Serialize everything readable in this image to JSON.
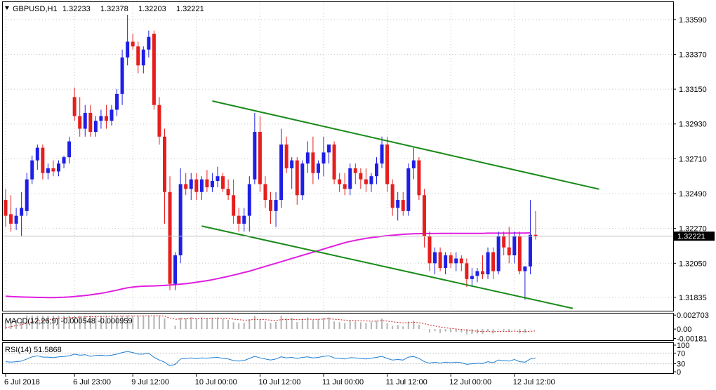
{
  "header": {
    "symbol": "GBPUSD,H1",
    "open": "1.32233",
    "high": "1.32378",
    "low": "1.32203",
    "close": "1.32221"
  },
  "colors": {
    "bull": "#1e1ee6",
    "bear": "#e61e1e",
    "ma": "#e01ee0",
    "trend": "#1a8a1a",
    "grid": "#c8c8c8",
    "rsi": "#1e7fd6",
    "macd_signal": "#c81e1e",
    "macd_hist": "#b4b4b4"
  },
  "chart_data": [
    {
      "type": "candlestick",
      "y_ticks": [
        "1.33590",
        "1.33370",
        "1.33150",
        "1.32930",
        "1.32710",
        "1.32490",
        "1.32270",
        "1.32050",
        "1.31835"
      ],
      "ylim": [
        1.3175,
        1.337
      ],
      "current_price_label": "1.32221",
      "current_price": 1.32221,
      "x_ticks": [
        {
          "label": "6 Jul 2018",
          "index": 0
        },
        {
          "label": "6 Jul 23:00",
          "index": 13
        },
        {
          "label": "9 Jul 12:00",
          "index": 24
        },
        {
          "label": "10 Jul 00:00",
          "index": 36
        },
        {
          "label": "10 Jul 12:00",
          "index": 48
        },
        {
          "label": "11 Jul 00:00",
          "index": 60
        },
        {
          "label": "11 Jul 12:00",
          "index": 72
        },
        {
          "label": "12 Jul 00:00",
          "index": 84
        },
        {
          "label": "12 Jul 12:00",
          "index": 96
        }
      ],
      "candles": [
        [
          1.3245,
          1.3252,
          1.3228,
          1.3235
        ],
        [
          1.3236,
          1.3248,
          1.3225,
          1.323
        ],
        [
          1.323,
          1.324,
          1.3226,
          1.3235
        ],
        [
          1.3235,
          1.325,
          1.3222,
          1.324
        ],
        [
          1.3238,
          1.3262,
          1.3235,
          1.3258
        ],
        [
          1.3258,
          1.3273,
          1.3255,
          1.327
        ],
        [
          1.327,
          1.328,
          1.3264,
          1.3278
        ],
        [
          1.3278,
          1.328,
          1.3258,
          1.3262
        ],
        [
          1.3262,
          1.3268,
          1.3258,
          1.3265
        ],
        [
          1.3265,
          1.327,
          1.326,
          1.3263
        ],
        [
          1.3263,
          1.327,
          1.326,
          1.3268
        ],
        [
          1.3268,
          1.3273,
          1.3265,
          1.3272
        ],
        [
          1.3272,
          1.3285,
          1.3268,
          1.3282
        ],
        [
          1.331,
          1.3316,
          1.3295,
          1.3298
        ],
        [
          1.3298,
          1.331,
          1.3285,
          1.329
        ],
        [
          1.329,
          1.3305,
          1.3285,
          1.33
        ],
        [
          1.33,
          1.3305,
          1.3285,
          1.3288
        ],
        [
          1.3288,
          1.3298,
          1.3285,
          1.3295
        ],
        [
          1.3295,
          1.3302,
          1.329,
          1.3298
        ],
        [
          1.3298,
          1.3305,
          1.329,
          1.3295
        ],
        [
          1.3295,
          1.3305,
          1.3292,
          1.3302
        ],
        [
          1.3302,
          1.3315,
          1.3298,
          1.3312
        ],
        [
          1.3312,
          1.334,
          1.3305,
          1.3335
        ],
        [
          1.3335,
          1.3362,
          1.333,
          1.3345
        ],
        [
          1.3345,
          1.335,
          1.334,
          1.3342
        ],
        [
          1.3342,
          1.3345,
          1.3325,
          1.333
        ],
        [
          1.333,
          1.3342,
          1.3325,
          1.334
        ],
        [
          1.334,
          1.3352,
          1.3335,
          1.3348
        ],
        [
          1.335,
          1.3352,
          1.3302,
          1.3305
        ],
        [
          1.3305,
          1.331,
          1.328,
          1.3285
        ],
        [
          1.3285,
          1.329,
          1.323,
          1.325
        ],
        [
          1.325,
          1.326,
          1.3188,
          1.3192
        ],
        [
          1.3192,
          1.3212,
          1.3188,
          1.321
        ],
        [
          1.321,
          1.3265,
          1.3205,
          1.3255
        ],
        [
          1.3255,
          1.3262,
          1.3248,
          1.3252
        ],
        [
          1.3252,
          1.3262,
          1.3245,
          1.3258
        ],
        [
          1.3258,
          1.3262,
          1.3245,
          1.325
        ],
        [
          1.325,
          1.326,
          1.3245,
          1.3258
        ],
        [
          1.3258,
          1.3264,
          1.325,
          1.3253
        ],
        [
          1.3253,
          1.3262,
          1.325,
          1.3257
        ],
        [
          1.3257,
          1.3266,
          1.3253,
          1.326
        ],
        [
          1.326,
          1.3262,
          1.325,
          1.3252
        ],
        [
          1.3252,
          1.3258,
          1.3245,
          1.3248
        ],
        [
          1.3248,
          1.3258,
          1.323,
          1.3235
        ],
        [
          1.3235,
          1.324,
          1.3225,
          1.323
        ],
        [
          1.323,
          1.324,
          1.3225,
          1.3235
        ],
        [
          1.3235,
          1.326,
          1.3225,
          1.3255
        ],
        [
          1.3258,
          1.33,
          1.3255,
          1.3288
        ],
        [
          1.3288,
          1.3298,
          1.325,
          1.3255
        ],
        [
          1.3255,
          1.326,
          1.324,
          1.3245
        ],
        [
          1.3245,
          1.325,
          1.323,
          1.3238
        ],
        [
          1.3238,
          1.325,
          1.3228,
          1.3245
        ],
        [
          1.3245,
          1.329,
          1.324,
          1.328
        ],
        [
          1.328,
          1.3285,
          1.3262,
          1.3265
        ],
        [
          1.3265,
          1.3272,
          1.3252,
          1.327
        ],
        [
          1.327,
          1.3272,
          1.3242,
          1.3248
        ],
        [
          1.3248,
          1.327,
          1.3245,
          1.3268
        ],
        [
          1.3268,
          1.3282,
          1.3262,
          1.3275
        ],
        [
          1.3275,
          1.3285,
          1.3255,
          1.3262
        ],
        [
          1.3262,
          1.327,
          1.3258,
          1.3268
        ],
        [
          1.3268,
          1.3285,
          1.326,
          1.3275
        ],
        [
          1.3275,
          1.328,
          1.3268,
          1.328
        ],
        [
          1.328,
          1.3282,
          1.3255,
          1.3258
        ],
        [
          1.3258,
          1.3262,
          1.325,
          1.3255
        ],
        [
          1.3255,
          1.3262,
          1.3248,
          1.3252
        ],
        [
          1.3252,
          1.3268,
          1.3248,
          1.3265
        ],
        [
          1.3265,
          1.3268,
          1.3255,
          1.3262
        ],
        [
          1.3262,
          1.3265,
          1.3252,
          1.3258
        ],
        [
          1.3258,
          1.3265,
          1.325,
          1.3255
        ],
        [
          1.3255,
          1.3262,
          1.325,
          1.326
        ],
        [
          1.326,
          1.3272,
          1.3255,
          1.3268
        ],
        [
          1.3268,
          1.3285,
          1.3265,
          1.328
        ],
        [
          1.328,
          1.3285,
          1.325,
          1.3255
        ],
        [
          1.3255,
          1.3258,
          1.3235,
          1.324
        ],
        [
          1.324,
          1.325,
          1.3232,
          1.3245
        ],
        [
          1.3245,
          1.325,
          1.3235,
          1.3238
        ],
        [
          1.3238,
          1.3268,
          1.3235,
          1.3265
        ],
        [
          1.3265,
          1.3278,
          1.3258,
          1.327
        ],
        [
          1.327,
          1.3272,
          1.3245,
          1.3248
        ],
        [
          1.3248,
          1.3252,
          1.3215,
          1.3222
        ],
        [
          1.3222,
          1.3225,
          1.32,
          1.3205
        ],
        [
          1.3205,
          1.3215,
          1.3198,
          1.3212
        ],
        [
          1.3212,
          1.3215,
          1.32,
          1.3202
        ],
        [
          1.3202,
          1.3212,
          1.3198,
          1.321
        ],
        [
          1.321,
          1.3212,
          1.3202,
          1.3205
        ],
        [
          1.3205,
          1.3212,
          1.32,
          1.3208
        ],
        [
          1.3208,
          1.321,
          1.32,
          1.3205
        ],
        [
          1.3205,
          1.3208,
          1.319,
          1.3195
        ],
        [
          1.3195,
          1.3202,
          1.319,
          1.3197
        ],
        [
          1.3197,
          1.3202,
          1.3193,
          1.32
        ],
        [
          1.32,
          1.321,
          1.3195,
          1.3198
        ],
        [
          1.3198,
          1.3215,
          1.3195,
          1.3212
        ],
        [
          1.3212,
          1.3215,
          1.3195,
          1.32
        ],
        [
          1.32,
          1.3225,
          1.3198,
          1.3222
        ],
        [
          1.3222,
          1.3225,
          1.321,
          1.3215
        ],
        [
          1.3215,
          1.3228,
          1.3205,
          1.321
        ],
        [
          1.321,
          1.3225,
          1.3205,
          1.3222
        ],
        [
          1.3222,
          1.3225,
          1.3198,
          1.32
        ],
        [
          1.32,
          1.3203,
          1.3182,
          1.3203
        ],
        [
          1.3203,
          1.3245,
          1.3198,
          1.3223
        ],
        [
          1.3223,
          1.3238,
          1.322,
          1.3222
        ]
      ],
      "ma_series": [
        1.31842,
        1.3184,
        1.31838,
        1.31837,
        1.31836,
        1.31835,
        1.31834,
        1.31834,
        1.31833,
        1.31833,
        1.31834,
        1.31835,
        1.31837,
        1.3184,
        1.31843,
        1.31846,
        1.3185,
        1.31855,
        1.3186,
        1.31866,
        1.31873,
        1.3188,
        1.31888,
        1.31895,
        1.319,
        1.31903,
        1.31905,
        1.31906,
        1.31907,
        1.31908,
        1.3191,
        1.31912,
        1.31915,
        1.31918,
        1.31921,
        1.31925,
        1.3193,
        1.31935,
        1.3194,
        1.31946,
        1.31953,
        1.3196,
        1.31967,
        1.31975,
        1.31983,
        1.31992,
        1.32,
        1.3201,
        1.3202,
        1.3203,
        1.3204,
        1.3205,
        1.3206,
        1.3207,
        1.3208,
        1.3209,
        1.321,
        1.3211,
        1.3212,
        1.3213,
        1.3214,
        1.3215,
        1.3216,
        1.3217,
        1.3218,
        1.32188,
        1.32195,
        1.32201,
        1.32207,
        1.32212,
        1.32216,
        1.3222,
        1.32224,
        1.32227,
        1.3223,
        1.32233,
        1.32235,
        1.32236,
        1.32237,
        1.32238,
        1.32238,
        1.32238,
        1.32239,
        1.32239,
        1.32239,
        1.32239,
        1.32239,
        1.32239,
        1.32239,
        1.32239,
        1.32239,
        1.3224,
        1.3224,
        1.3224,
        1.3224,
        1.3224,
        1.32241,
        1.32241,
        1.32241,
        1.32242
      ],
      "trendlines": [
        {
          "from": [
            39,
            1.33075
          ],
          "to": [
            112,
            1.32518
          ]
        },
        {
          "from": [
            37,
            1.32285
          ],
          "to": [
            107,
            1.31765
          ]
        }
      ]
    },
    {
      "type": "line",
      "title": "MACD(12,26,9) -0.000548 -0.000959",
      "y_ticks": [
        "0.002703",
        "0.00",
        "-0.00181"
      ],
      "ylim": [
        -0.00215,
        0.003
      ]
    },
    {
      "type": "line",
      "title": "RSI(14) 51.5868",
      "y_ticks": [
        "100",
        "70",
        "30",
        "0"
      ],
      "ylim": [
        0,
        100
      ],
      "rsi_series": [
        38,
        36,
        38,
        40,
        48,
        56,
        60,
        55,
        55,
        53,
        56,
        57,
        60,
        66,
        62,
        64,
        58,
        61,
        62,
        60,
        62,
        66,
        72,
        76,
        72,
        66,
        66,
        70,
        54,
        44,
        36,
        22,
        28,
        48,
        50,
        52,
        49,
        52,
        51,
        53,
        54,
        50,
        48,
        42,
        40,
        42,
        50,
        58,
        52,
        48,
        44,
        48,
        56,
        52,
        54,
        50,
        54,
        56,
        52,
        54,
        58,
        60,
        52,
        50,
        48,
        53,
        52,
        50,
        48,
        51,
        54,
        58,
        50,
        44,
        46,
        44,
        55,
        57,
        50,
        38,
        32,
        36,
        32,
        36,
        34,
        36,
        34,
        28,
        30,
        32,
        31,
        38,
        34,
        44,
        42,
        40,
        46,
        38,
        36,
        48,
        51.6
      ]
    }
  ]
}
